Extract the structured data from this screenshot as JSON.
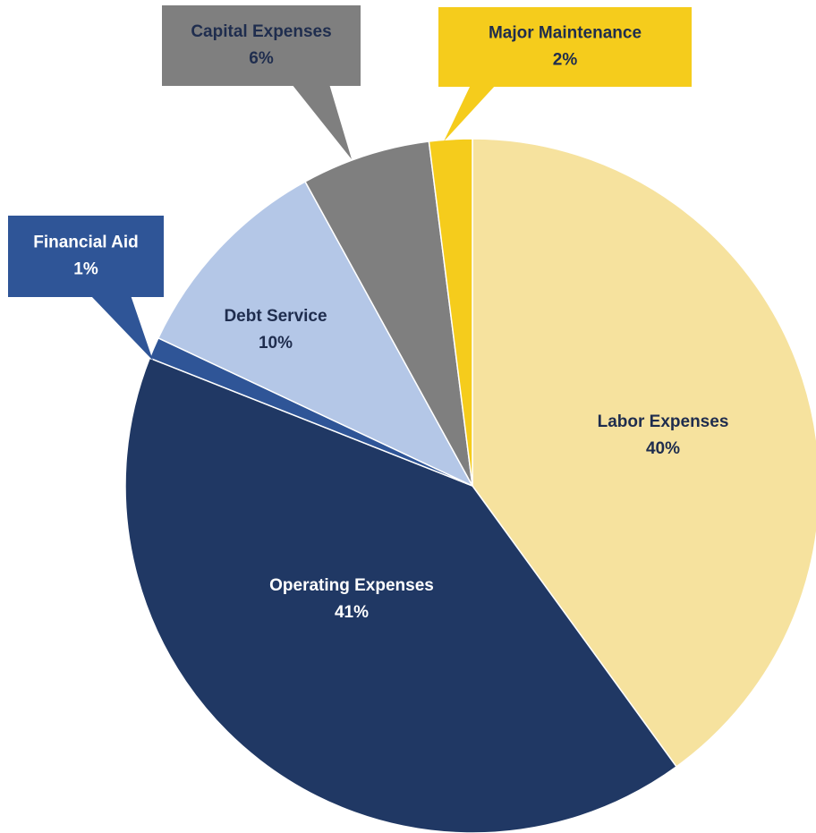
{
  "chart_data": {
    "type": "pie",
    "title": "",
    "slices": [
      {
        "label": "Labor Expenses",
        "pct_label": "40%",
        "value": 40,
        "color": "#F6E29E",
        "text_color": "#1F2D4E"
      },
      {
        "label": "Operating Expenses",
        "pct_label": "41%",
        "value": 41,
        "color": "#203864",
        "text_color": "#FFFFFF"
      },
      {
        "label": "Financial Aid",
        "pct_label": "1%",
        "value": 1,
        "color": "#2F5597",
        "text_color": "#FFFFFF"
      },
      {
        "label": "Debt Service",
        "pct_label": "10%",
        "value": 10,
        "color": "#B4C7E7",
        "text_color": "#1F2D4E"
      },
      {
        "label": "Capital Expenses",
        "pct_label": "6%",
        "value": 6,
        "color": "#7F7F7F",
        "text_color": "#1F2D4E"
      },
      {
        "label": "Major Maintenance",
        "pct_label": "2%",
        "value": 2,
        "color": "#F5CC1C",
        "text_color": "#1F2D4E"
      }
    ]
  }
}
